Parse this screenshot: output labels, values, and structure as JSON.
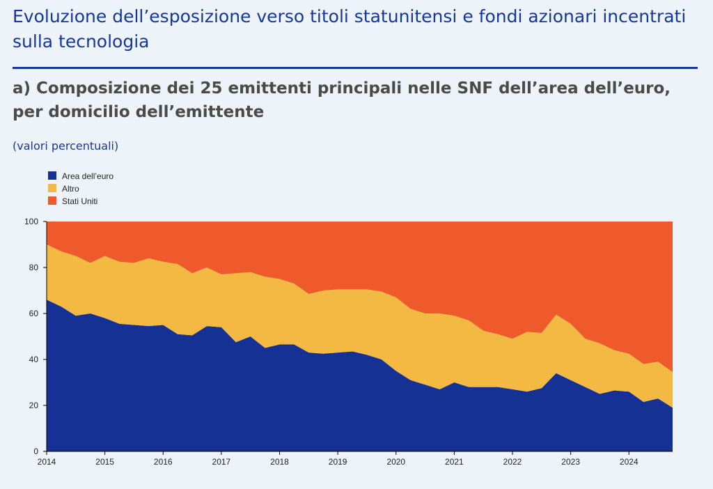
{
  "header": {
    "title": "Evoluzione dell’esposizione verso titoli statunitensi e fondi azionari incentrati sulla tecnologia",
    "subtitle": "a) Composizione dei 25 emittenti principali nelle SNF dell’area dell’euro, per domicilio dell’emittente",
    "unit": "(valori percentuali)"
  },
  "colors": {
    "area_euro": "#143193",
    "altro": "#f4b942",
    "stati_uniti": "#ee5a2b",
    "text_blue": "#14389a"
  },
  "chart_data": {
    "type": "area",
    "stacked": true,
    "title": "",
    "xlabel": "",
    "ylabel": "",
    "ylim": [
      0,
      100
    ],
    "yticks": [
      0,
      20,
      40,
      60,
      80,
      100
    ],
    "xlim": [
      2014,
      2024.75
    ],
    "xticks": [
      2014,
      2015,
      2016,
      2017,
      2018,
      2019,
      2020,
      2021,
      2022,
      2023,
      2024
    ],
    "grid": false,
    "legend_position": "top-left",
    "x": [
      2014.0,
      2014.25,
      2014.5,
      2014.75,
      2015.0,
      2015.25,
      2015.5,
      2015.75,
      2016.0,
      2016.25,
      2016.5,
      2016.75,
      2017.0,
      2017.25,
      2017.5,
      2017.75,
      2018.0,
      2018.25,
      2018.5,
      2018.75,
      2019.0,
      2019.25,
      2019.5,
      2019.75,
      2020.0,
      2020.25,
      2020.5,
      2020.75,
      2021.0,
      2021.25,
      2021.5,
      2021.75,
      2022.0,
      2022.25,
      2022.5,
      2022.75,
      2023.0,
      2023.25,
      2023.5,
      2023.75,
      2024.0,
      2024.25,
      2024.5,
      2024.75
    ],
    "series": [
      {
        "name": "Area dell’euro",
        "color": "#143193",
        "values": [
          66,
          63,
          59,
          60,
          58,
          55.5,
          55,
          54.5,
          55,
          51,
          50.5,
          54.5,
          54,
          47.5,
          50,
          45,
          46.5,
          46.5,
          43,
          42.5,
          43,
          43.5,
          42,
          40,
          35,
          31,
          29,
          27,
          30,
          28,
          28,
          28,
          27,
          26,
          27.5,
          34,
          31,
          28,
          25,
          26.5,
          26,
          21.5,
          23,
          19
        ]
      },
      {
        "name": "Altro",
        "color": "#f4b942",
        "values": [
          24,
          24,
          26,
          22,
          27,
          27,
          27,
          29.5,
          27.5,
          30.5,
          27,
          25.5,
          23,
          30,
          28,
          31,
          28.5,
          26.5,
          25.5,
          27.5,
          27.5,
          27,
          28.5,
          29.5,
          32,
          31,
          31,
          33,
          29,
          29,
          24.5,
          23,
          22,
          26,
          24,
          25.5,
          24.5,
          21,
          22,
          17.5,
          16.5,
          16.5,
          16,
          15.5
        ]
      },
      {
        "name": "Stati Uniti",
        "color": "#ee5a2b",
        "values": [
          10,
          13,
          15,
          18,
          15,
          17.5,
          18,
          16,
          17.5,
          18.5,
          22.5,
          20,
          23,
          22.5,
          22,
          24,
          25,
          27,
          31.5,
          30,
          29.5,
          29.5,
          29.5,
          30.5,
          33,
          38,
          40,
          40,
          41,
          43,
          47.5,
          49,
          51,
          48,
          48.5,
          40.5,
          44.5,
          51,
          53,
          56,
          57.5,
          62,
          61,
          65.5
        ]
      }
    ]
  }
}
